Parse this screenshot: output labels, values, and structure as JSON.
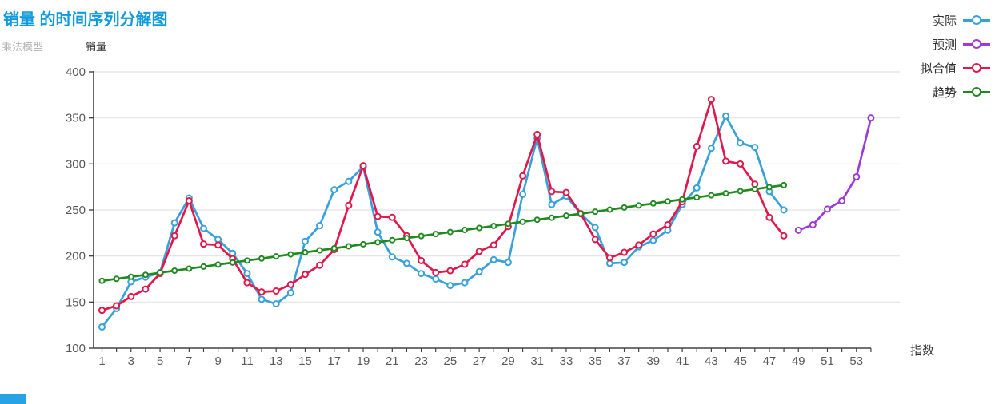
{
  "header": {
    "title": "销量 的时间序列分解图",
    "model_type": "乘法模型"
  },
  "colors": {
    "title": "#119bdd",
    "subtitle_text": "#b3b3b3",
    "axis": "#444444",
    "tick_label": "#595959",
    "grid": "#e2e2e2",
    "actual": "#38a1db",
    "forecast": "#9c3bd9",
    "fitted": "#e0184c",
    "trend": "#208a20",
    "corner_artifact": "#27a2e4"
  },
  "chart_data": {
    "type": "line",
    "title": "销量 的时间序列分解图",
    "subtitle": "乘法模型",
    "xlabel": "指数",
    "ylabel": "销量",
    "ylim": [
      100,
      400
    ],
    "xlim": [
      1,
      54
    ],
    "y_ticks": [
      100,
      150,
      200,
      250,
      300,
      350,
      400
    ],
    "x_tick_labels": [
      1,
      3,
      5,
      7,
      9,
      11,
      13,
      15,
      17,
      19,
      21,
      23,
      25,
      27,
      29,
      31,
      33,
      35,
      37,
      39,
      41,
      43,
      45,
      47,
      49,
      51,
      53
    ],
    "grid": "horizontal",
    "legend_position": "top-right",
    "series": [
      {
        "key": "actual",
        "name": "实际",
        "color": "#38a1db",
        "x_start": 1,
        "values": [
          123,
          143,
          172,
          177,
          182,
          236,
          263,
          230,
          218,
          203,
          181,
          153,
          148,
          160,
          216,
          233,
          272,
          281,
          297,
          226,
          199,
          192,
          181,
          175,
          168,
          171,
          183,
          196,
          193,
          267,
          328,
          256,
          265,
          246,
          231,
          192,
          193,
          210,
          217,
          228,
          256,
          274,
          317,
          352,
          323,
          318,
          270,
          250
        ]
      },
      {
        "key": "forecast",
        "name": "预测",
        "color": "#9c3bd9",
        "x_start": 49,
        "values": [
          228,
          234,
          251,
          260,
          286,
          350
        ]
      },
      {
        "key": "fitted",
        "name": "拟合值",
        "color": "#e0184c",
        "x_start": 1,
        "values": [
          141,
          146,
          156,
          164,
          181,
          222,
          260,
          213,
          212,
          197,
          171,
          161,
          162,
          169,
          180,
          190,
          207,
          255,
          298,
          243,
          242,
          222,
          195,
          182,
          184,
          191,
          205,
          212,
          232,
          287,
          332,
          270,
          269,
          246,
          218,
          198,
          204,
          212,
          224,
          234,
          259,
          319,
          370,
          303,
          300,
          278,
          242,
          222
        ]
      },
      {
        "key": "trend",
        "name": "趋势",
        "color": "#208a20",
        "x_start": 1,
        "values": [
          173.0,
          175.2,
          177.4,
          179.6,
          181.9,
          184.1,
          186.3,
          188.5,
          190.7,
          192.9,
          195.1,
          197.3,
          199.6,
          201.8,
          204.0,
          206.2,
          208.4,
          210.6,
          212.8,
          215.0,
          217.3,
          219.5,
          221.7,
          223.9,
          226.1,
          228.3,
          230.5,
          232.7,
          235.0,
          237.2,
          239.4,
          241.6,
          243.8,
          246.0,
          248.2,
          250.4,
          252.7,
          254.9,
          257.1,
          259.3,
          261.5,
          263.7,
          265.9,
          268.1,
          270.4,
          272.6,
          274.8,
          277.0
        ]
      }
    ]
  }
}
